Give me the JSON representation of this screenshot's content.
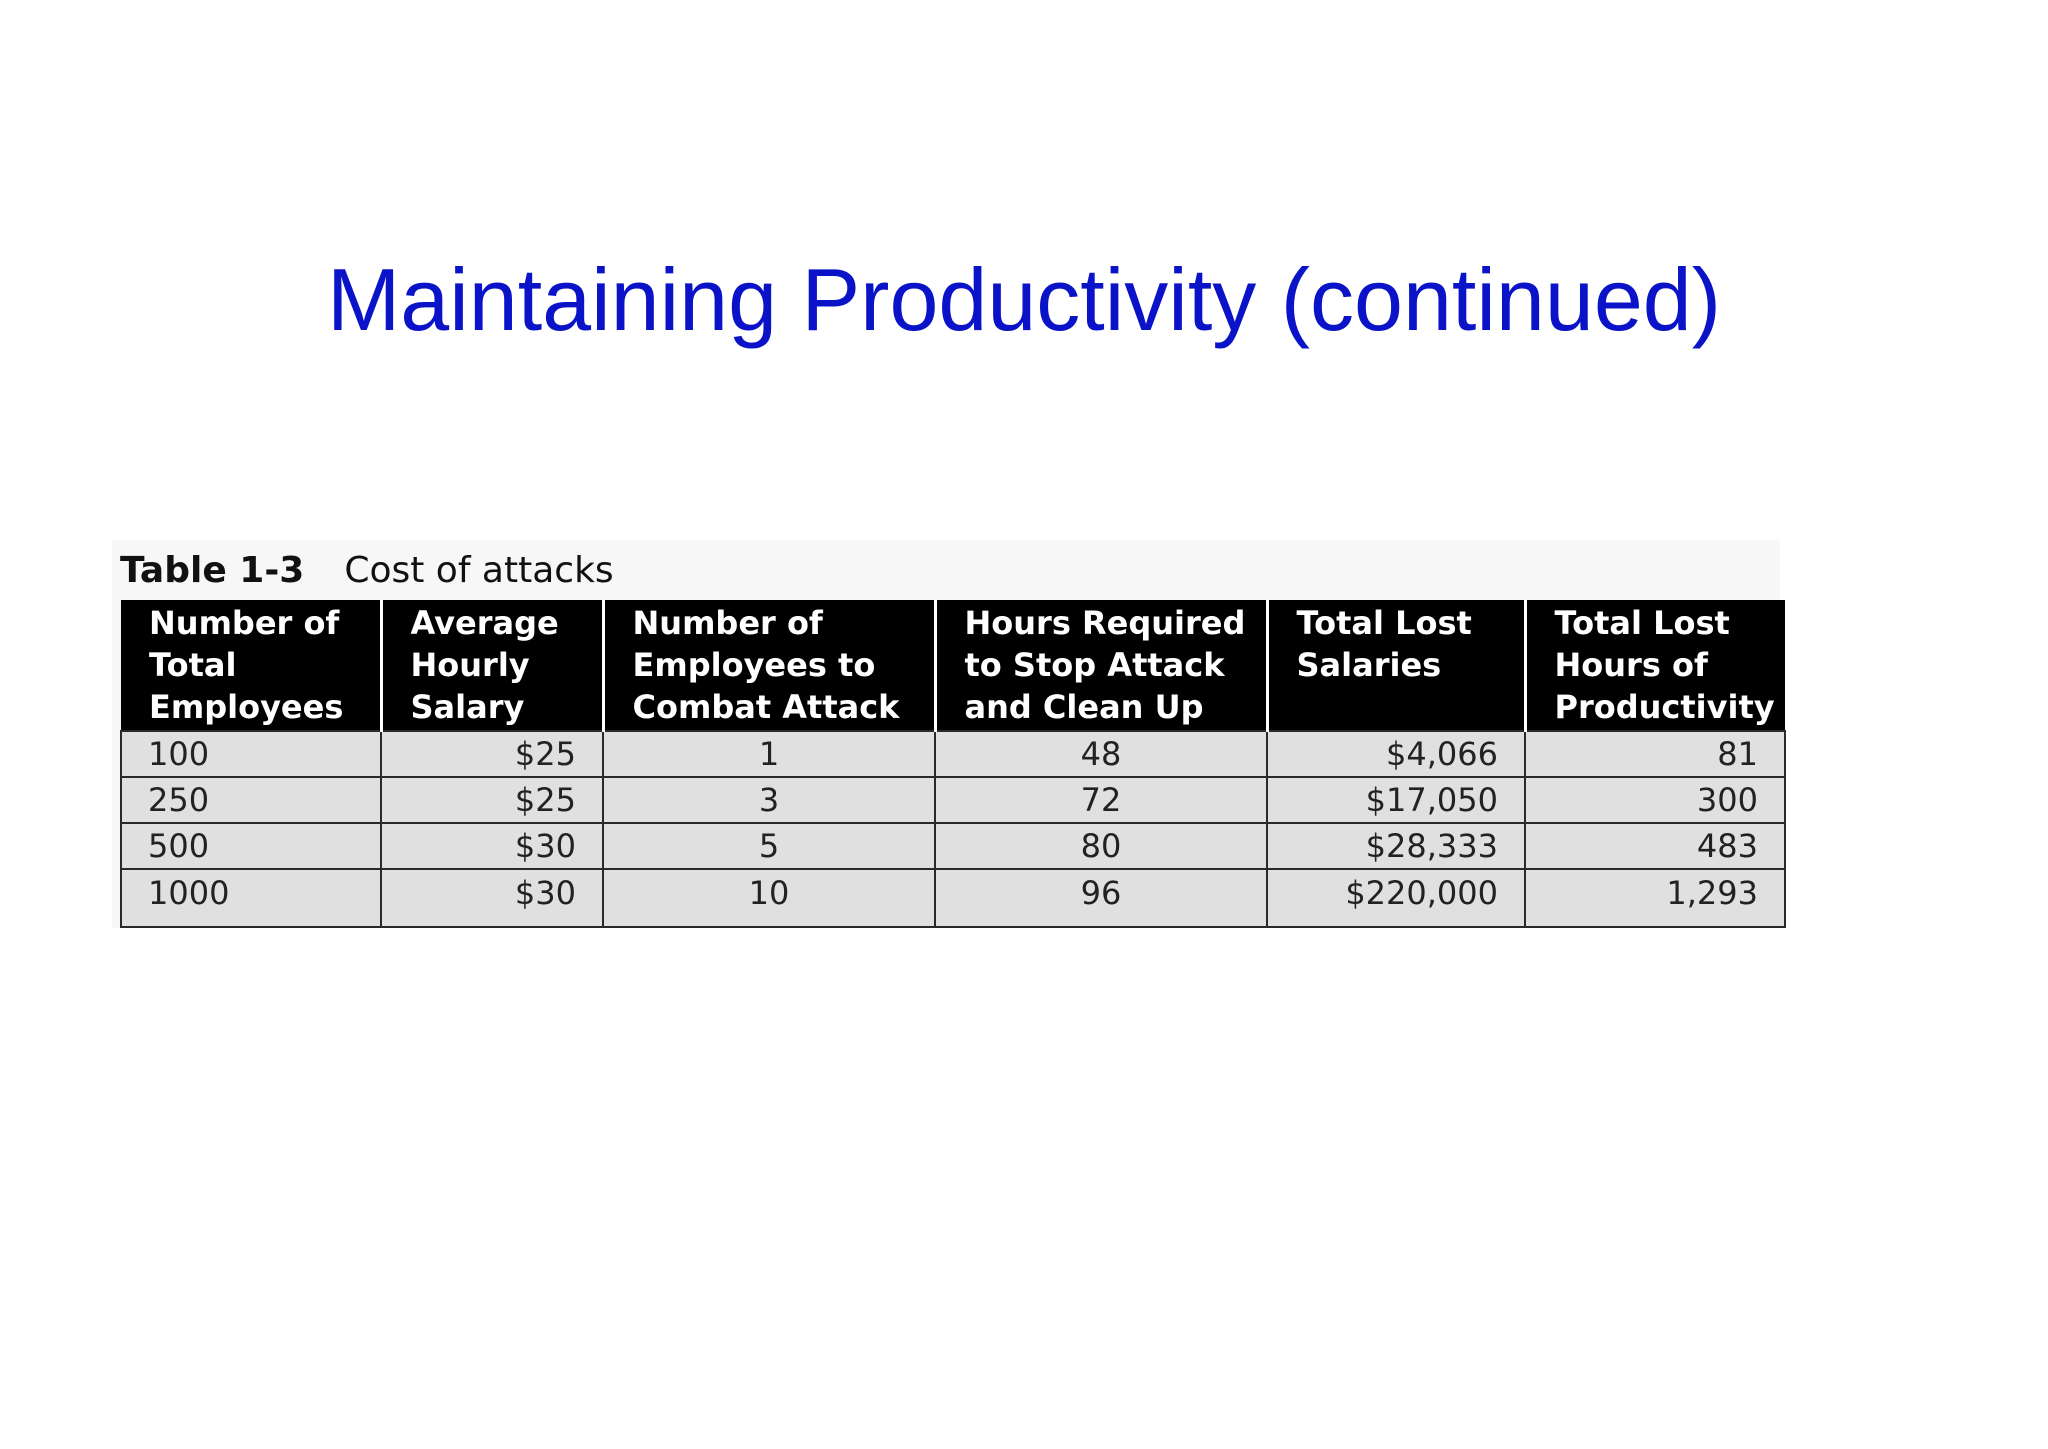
{
  "slide": {
    "title": "Maintaining Productivity (continued)"
  },
  "table": {
    "caption_label": "Table 1-3",
    "caption_text": "Cost of attacks",
    "headers": [
      "Number of Total Employees",
      "Average Hourly Salary",
      "Number of Employees to Combat Attack",
      "Hours Required to Stop Attack and Clean Up",
      "Total Lost Salaries",
      "Total Lost Hours of Productivity"
    ],
    "rows": [
      [
        "100",
        "$25",
        "1",
        "48",
        "$4,066",
        "81"
      ],
      [
        "250",
        "$25",
        "3",
        "72",
        "$17,050",
        "300"
      ],
      [
        "500",
        "$30",
        "5",
        "80",
        "$28,333",
        "483"
      ],
      [
        "1000",
        "$30",
        "10",
        "96",
        "$220,000",
        "1,293"
      ]
    ]
  },
  "colors": {
    "title": "#0a13c8",
    "header_bg": "#000000",
    "header_text": "#ffffff",
    "cell_bg": "#e0e0e0"
  }
}
